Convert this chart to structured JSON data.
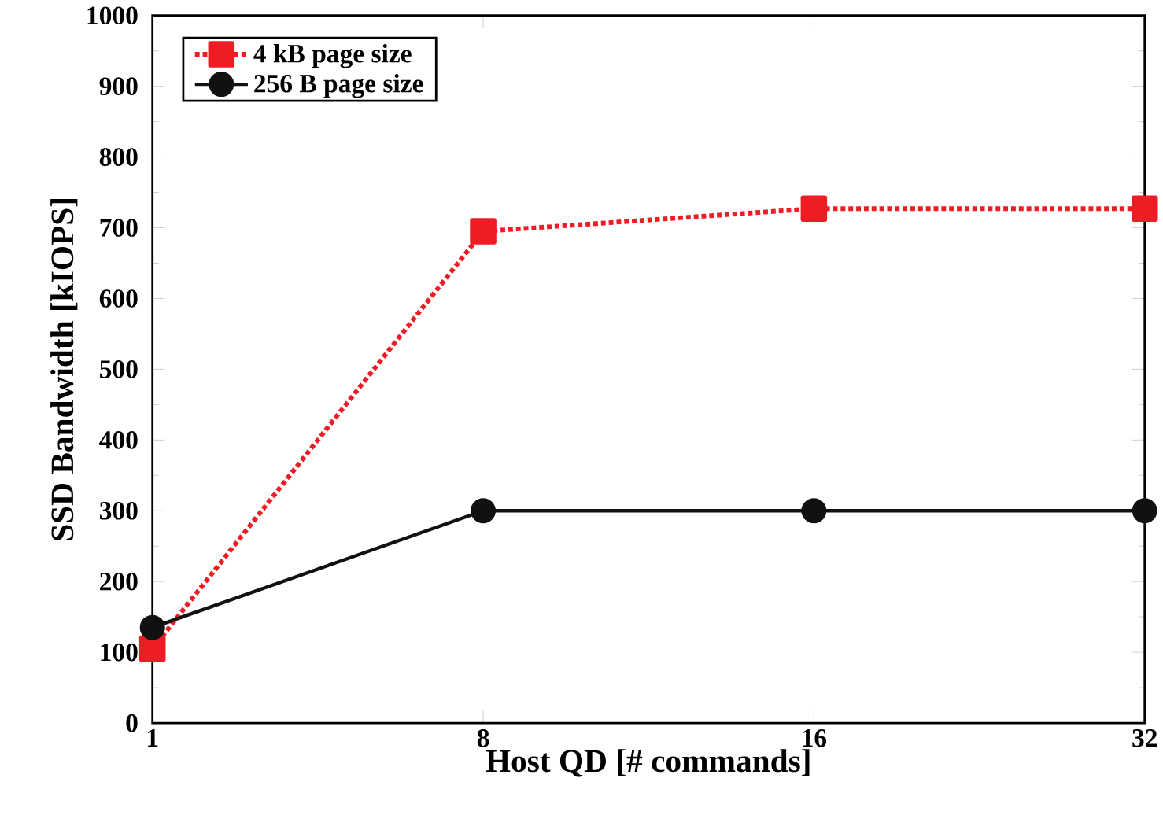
{
  "chart_data": {
    "type": "line",
    "xlabel": "Host QD [# commands]",
    "ylabel": "SSD Bandwidth [kIOPS]",
    "categories": [
      "1",
      "8",
      "16",
      "32"
    ],
    "series": [
      {
        "name": "4 kB page size",
        "color": "#ee1c25",
        "values": [
          105,
          695,
          727,
          727
        ],
        "marker": "square",
        "line_style": "dotted"
      },
      {
        "name": "256 B page size",
        "color": "#111111",
        "values": [
          135,
          300,
          300,
          300
        ],
        "marker": "circle",
        "line_style": "solid"
      }
    ],
    "ylim": [
      0,
      1000
    ],
    "yticks": [
      0,
      100,
      200,
      300,
      400,
      500,
      600,
      700,
      800,
      900,
      1000
    ],
    "legend": "top left"
  }
}
